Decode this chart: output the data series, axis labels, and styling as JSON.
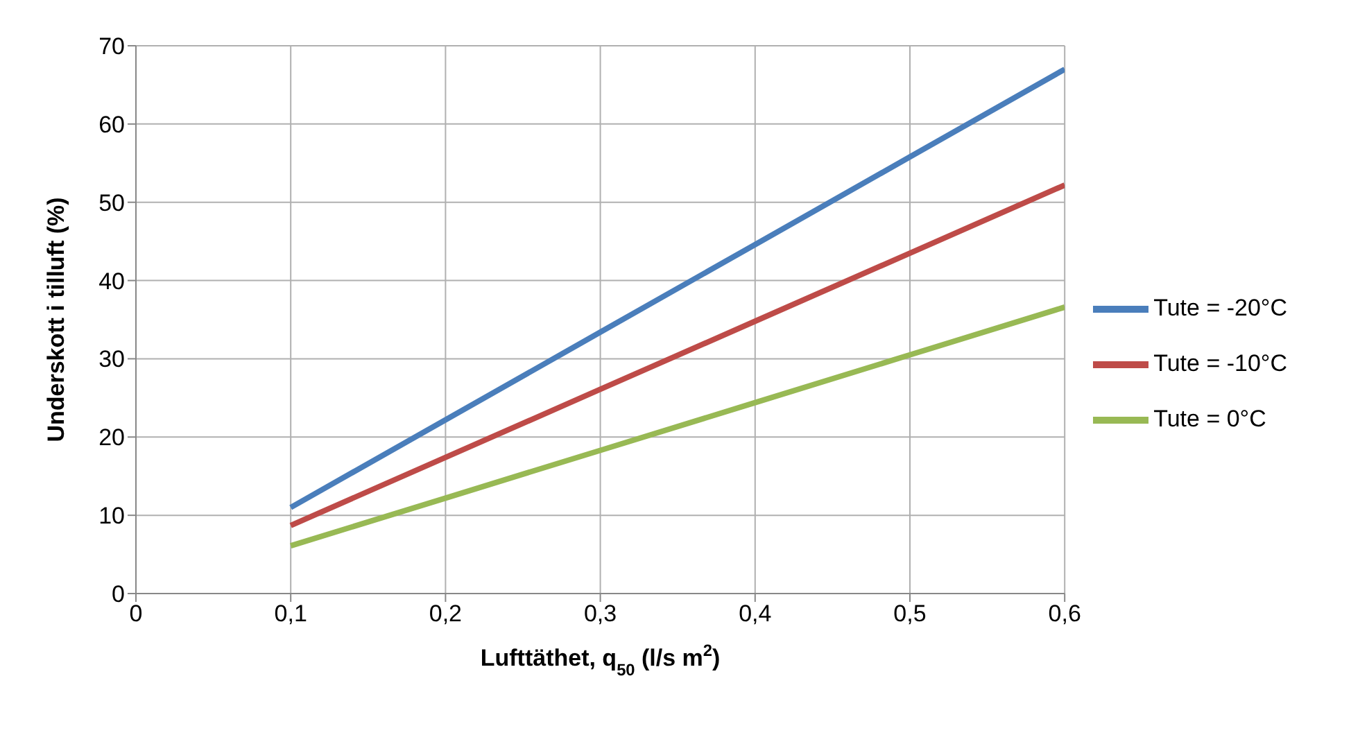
{
  "chart_data": {
    "type": "line",
    "xlabel": "Lufttäthet, q$_{50}$ (l/s m$^{2}$)",
    "ylabel": "Underskott i tilluft (%)",
    "x": [
      0.1,
      0.2,
      0.3,
      0.4,
      0.5,
      0.6
    ],
    "series": [
      {
        "name": "Tute = -20°C",
        "color": "#4a7ebb",
        "values": [
          11,
          22.2,
          33.4,
          44.6,
          55.8,
          67
        ]
      },
      {
        "name": "Tute = -10°C",
        "color": "#be4b48",
        "values": [
          8.7,
          17.4,
          26.1,
          34.8,
          43.5,
          52.2
        ]
      },
      {
        "name": "Tute = 0°C",
        "color": "#98b954",
        "values": [
          6.1,
          12.2,
          18.3,
          24.4,
          30.5,
          36.6
        ]
      }
    ],
    "xlim": [
      0,
      0.6
    ],
    "xticks": [
      0,
      {
        "value": 0.1,
        "label": "0,1"
      },
      {
        "value": 0.2,
        "label": "0,2"
      },
      {
        "value": 0.3,
        "label": "0,3"
      },
      {
        "value": 0.4,
        "label": "0,4"
      },
      {
        "value": 0.5,
        "label": "0,5"
      },
      {
        "value": 0.6,
        "label": "0,6"
      }
    ],
    "ylim": [
      0,
      70
    ],
    "yticks": [
      0,
      10,
      20,
      30,
      40,
      50,
      60,
      70
    ],
    "grid": true,
    "legend": "right",
    "marker": "none",
    "line_style": "solid"
  }
}
